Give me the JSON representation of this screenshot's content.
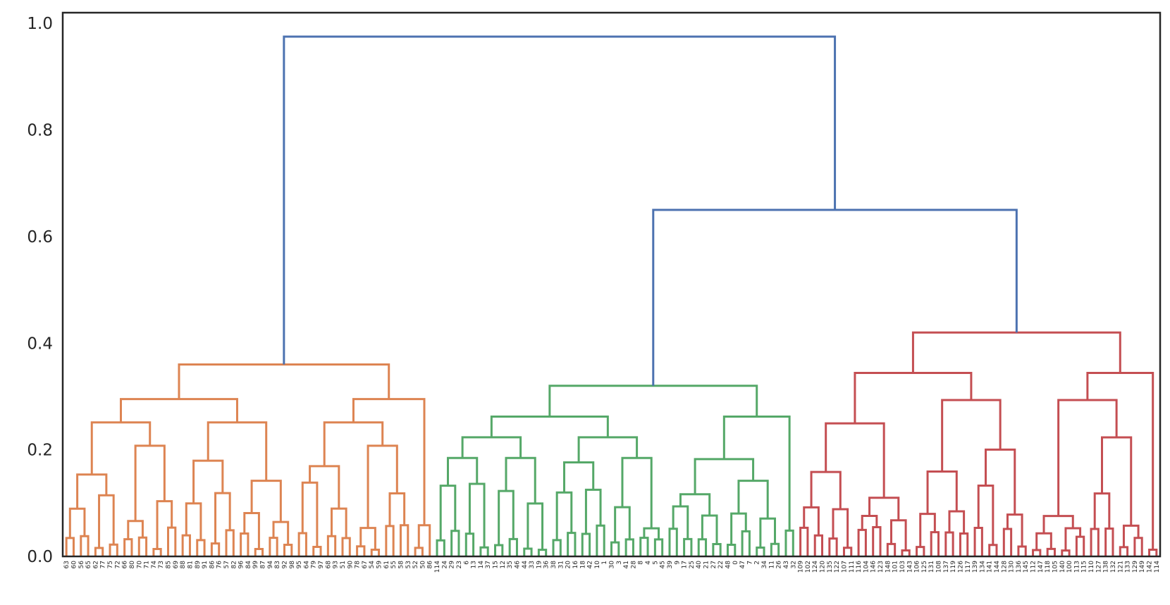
{
  "chart_data": {
    "type": "dendrogram",
    "ylim": [
      0,
      1.02
    ],
    "yticks": [
      "0.0",
      "0.2",
      "0.4",
      "0.6",
      "0.8",
      "1.0"
    ],
    "grid": false,
    "colors": {
      "root": "#4c72b0",
      "cluster_1": "#dd8452",
      "cluster_2": "#55a868",
      "cluster_3": "#c44e52"
    },
    "root_merges": [
      {
        "name": "root-merge",
        "height": 0.975
      },
      {
        "name": "green-red-merge",
        "height": 0.65
      }
    ],
    "clusters": [
      {
        "name": "cluster_1",
        "top_height": 0.36,
        "leaves": [
          "63",
          "60",
          "56",
          "65",
          "62",
          "77",
          "75",
          "72",
          "66",
          "80",
          "70",
          "71",
          "74",
          "73",
          "85",
          "69",
          "88",
          "81",
          "89",
          "91",
          "86",
          "76",
          "57",
          "82",
          "96",
          "84",
          "99",
          "87",
          "94",
          "83",
          "92",
          "98",
          "95",
          "64",
          "79",
          "97",
          "68",
          "93",
          "51",
          "90",
          "78",
          "67",
          "54",
          "59",
          "61",
          "55",
          "58",
          "53",
          "52",
          "50",
          "86"
        ]
      },
      {
        "name": "cluster_2",
        "top_height": 0.32,
        "leaves": [
          "114",
          "24",
          "29",
          "23",
          "6",
          "13",
          "14",
          "37",
          "15",
          "12",
          "35",
          "46",
          "44",
          "33",
          "19",
          "36",
          "38",
          "31",
          "20",
          "16",
          "18",
          "42",
          "10",
          "1",
          "30",
          "3",
          "41",
          "28",
          "8",
          "4",
          "5",
          "45",
          "39",
          "9",
          "17",
          "25",
          "40",
          "21",
          "27",
          "22",
          "48",
          "0",
          "47",
          "7",
          "2",
          "34",
          "11",
          "26",
          "43",
          "32"
        ]
      },
      {
        "name": "cluster_3",
        "top_height": 0.42,
        "leaves": [
          "109",
          "102",
          "124",
          "120",
          "135",
          "122",
          "107",
          "111",
          "116",
          "104",
          "146",
          "123",
          "148",
          "101",
          "103",
          "143",
          "106",
          "125",
          "131",
          "108",
          "137",
          "119",
          "126",
          "117",
          "139",
          "134",
          "141",
          "144",
          "128",
          "130",
          "136",
          "145",
          "112",
          "147",
          "118",
          "105",
          "140",
          "100",
          "113",
          "115",
          "110",
          "127",
          "138",
          "132",
          "121",
          "133",
          "129",
          "149",
          "142",
          "114"
        ]
      }
    ]
  }
}
